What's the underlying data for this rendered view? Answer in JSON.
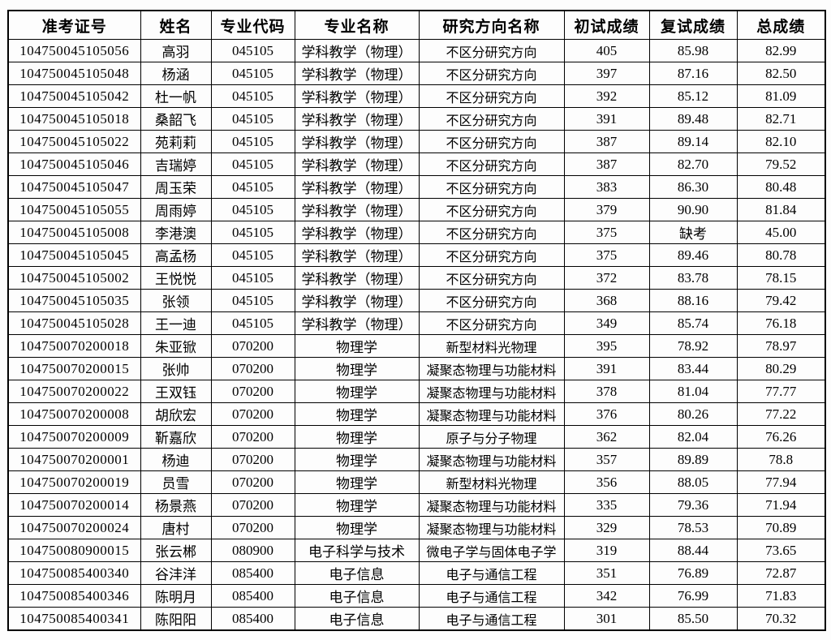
{
  "table": {
    "columns": [
      "准考证号",
      "姓名",
      "专业代码",
      "专业名称",
      "研究方向名称",
      "初试成绩",
      "复试成绩",
      "总成绩"
    ],
    "rows": [
      [
        "104750045105056",
        "高羽",
        "045105",
        "学科教学（物理）",
        "不区分研究方向",
        "405",
        "85.98",
        "82.99"
      ],
      [
        "104750045105048",
        "杨涵",
        "045105",
        "学科教学（物理）",
        "不区分研究方向",
        "397",
        "87.16",
        "82.50"
      ],
      [
        "104750045105042",
        "杜一帆",
        "045105",
        "学科教学（物理）",
        "不区分研究方向",
        "392",
        "85.12",
        "81.09"
      ],
      [
        "104750045105018",
        "桑韶飞",
        "045105",
        "学科教学（物理）",
        "不区分研究方向",
        "391",
        "89.48",
        "82.71"
      ],
      [
        "104750045105022",
        "苑莉莉",
        "045105",
        "学科教学（物理）",
        "不区分研究方向",
        "387",
        "89.14",
        "82.10"
      ],
      [
        "104750045105046",
        "吉瑞婷",
        "045105",
        "学科教学（物理）",
        "不区分研究方向",
        "387",
        "82.70",
        "79.52"
      ],
      [
        "104750045105047",
        "周玉荣",
        "045105",
        "学科教学（物理）",
        "不区分研究方向",
        "383",
        "86.30",
        "80.48"
      ],
      [
        "104750045105055",
        "周雨婷",
        "045105",
        "学科教学（物理）",
        "不区分研究方向",
        "379",
        "90.90",
        "81.84"
      ],
      [
        "104750045105008",
        "李港澳",
        "045105",
        "学科教学（物理）",
        "不区分研究方向",
        "375",
        "缺考",
        "45.00"
      ],
      [
        "104750045105045",
        "高孟杨",
        "045105",
        "学科教学（物理）",
        "不区分研究方向",
        "375",
        "89.46",
        "80.78"
      ],
      [
        "104750045105002",
        "王悦悦",
        "045105",
        "学科教学（物理）",
        "不区分研究方向",
        "372",
        "83.78",
        "78.15"
      ],
      [
        "104750045105035",
        "张领",
        "045105",
        "学科教学（物理）",
        "不区分研究方向",
        "368",
        "88.16",
        "79.42"
      ],
      [
        "104750045105028",
        "王一迪",
        "045105",
        "学科教学（物理）",
        "不区分研究方向",
        "349",
        "85.74",
        "76.18"
      ],
      [
        "104750070200018",
        "朱亚锨",
        "070200",
        "物理学",
        "新型材料光物理",
        "395",
        "78.92",
        "78.97"
      ],
      [
        "104750070200015",
        "张帅",
        "070200",
        "物理学",
        "凝聚态物理与功能材料",
        "391",
        "83.44",
        "80.29"
      ],
      [
        "104750070200022",
        "王双钰",
        "070200",
        "物理学",
        "凝聚态物理与功能材料",
        "378",
        "81.04",
        "77.77"
      ],
      [
        "104750070200008",
        "胡欣宏",
        "070200",
        "物理学",
        "凝聚态物理与功能材料",
        "376",
        "80.26",
        "77.22"
      ],
      [
        "104750070200009",
        "靳嘉欣",
        "070200",
        "物理学",
        "原子与分子物理",
        "362",
        "82.04",
        "76.26"
      ],
      [
        "104750070200001",
        "杨迪",
        "070200",
        "物理学",
        "凝聚态物理与功能材料",
        "357",
        "89.89",
        "78.8"
      ],
      [
        "104750070200019",
        "员雪",
        "070200",
        "物理学",
        "新型材料光物理",
        "356",
        "88.05",
        "77.94"
      ],
      [
        "104750070200014",
        "杨景燕",
        "070200",
        "物理学",
        "凝聚态物理与功能材料",
        "335",
        "79.36",
        "71.94"
      ],
      [
        "104750070200024",
        "唐村",
        "070200",
        "物理学",
        "凝聚态物理与功能材料",
        "329",
        "78.53",
        "70.89"
      ],
      [
        "104750080900015",
        "张云郴",
        "080900",
        "电子科学与技术",
        "微电子学与固体电子学",
        "319",
        "88.44",
        "73.65"
      ],
      [
        "104750085400340",
        "谷沣洋",
        "085400",
        "电子信息",
        "电子与通信工程",
        "351",
        "76.89",
        "72.87"
      ],
      [
        "104750085400346",
        "陈明月",
        "085400",
        "电子信息",
        "电子与通信工程",
        "342",
        "76.99",
        "71.83"
      ],
      [
        "104750085400341",
        "陈阳阳",
        "085400",
        "电子信息",
        "电子与通信工程",
        "301",
        "85.50",
        "70.32"
      ]
    ]
  }
}
